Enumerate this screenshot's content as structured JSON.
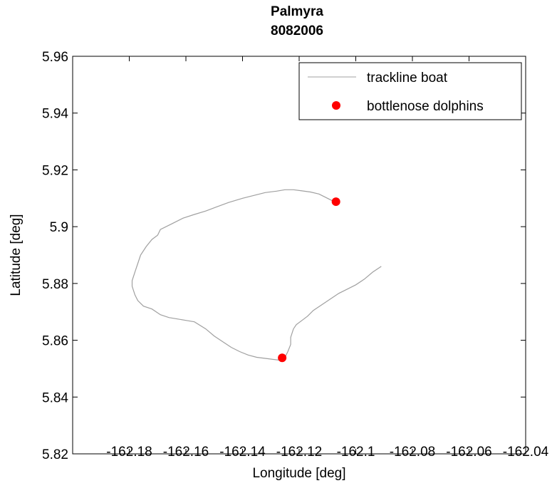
{
  "chart_data": {
    "type": "line",
    "title": "Palmyra",
    "subtitle": "8082006",
    "xlabel": "Longitude [deg]",
    "ylabel": "Latitude [deg]",
    "xlim": [
      -162.2,
      -162.04
    ],
    "ylim": [
      5.82,
      5.96
    ],
    "xticks": [
      -162.18,
      -162.16,
      -162.14,
      -162.12,
      -162.1,
      -162.08,
      -162.06,
      -162.04
    ],
    "xtick_labels": [
      "-162.18",
      "-162.16",
      "-162.14",
      "-162.12",
      "-162.1",
      "-162.08",
      "-162.06",
      "-162.04"
    ],
    "yticks": [
      5.82,
      5.84,
      5.86,
      5.88,
      5.9,
      5.92,
      5.94,
      5.96
    ],
    "ytick_labels": [
      "5.82",
      "5.84",
      "5.86",
      "5.88",
      "5.9",
      "5.92",
      "5.94",
      "5.96"
    ],
    "grid": false,
    "legend_position": "top-right",
    "series": [
      {
        "name": "trackline boat",
        "kind": "line",
        "color": "#a0a0a0",
        "x": [
          -162.108,
          -162.111,
          -162.113,
          -162.116,
          -162.119,
          -162.122,
          -162.125,
          -162.128,
          -162.132,
          -162.136,
          -162.14,
          -162.145,
          -162.149,
          -162.153,
          -162.157,
          -162.161,
          -162.165,
          -162.169,
          -162.17,
          -162.172,
          -162.174,
          -162.176,
          -162.177,
          -162.178,
          -162.179,
          -162.179,
          -162.178,
          -162.177,
          -162.175,
          -162.172,
          -162.169,
          -162.166,
          -162.163,
          -162.16,
          -162.157,
          -162.153,
          -162.15,
          -162.147,
          -162.144,
          -162.141,
          -162.138,
          -162.135,
          -162.131,
          -162.127,
          -162.125,
          -162.124,
          -162.123,
          -162.123,
          -162.122,
          -162.121,
          -162.119,
          -162.117,
          -162.115,
          -162.112,
          -162.109,
          -162.106,
          -162.103,
          -162.1,
          -162.097,
          -162.094,
          -162.091
        ],
        "y": [
          5.909,
          5.9105,
          5.9115,
          5.9122,
          5.9126,
          5.913,
          5.913,
          5.9125,
          5.912,
          5.911,
          5.91,
          5.9085,
          5.907,
          5.9055,
          5.9043,
          5.903,
          5.901,
          5.899,
          5.897,
          5.8955,
          5.893,
          5.89,
          5.887,
          5.884,
          5.881,
          5.879,
          5.876,
          5.874,
          5.872,
          5.871,
          5.869,
          5.868,
          5.8675,
          5.867,
          5.8665,
          5.864,
          5.8615,
          5.8595,
          5.8575,
          5.856,
          5.8548,
          5.854,
          5.8535,
          5.853,
          5.854,
          5.856,
          5.8585,
          5.861,
          5.864,
          5.8655,
          5.867,
          5.8685,
          5.8705,
          5.8725,
          5.8745,
          5.8765,
          5.878,
          5.8795,
          5.8815,
          5.884,
          5.886
        ]
      },
      {
        "name": "bottlenose dolphins",
        "kind": "scatter",
        "color": "#ff0000",
        "x": [
          -162.107,
          -162.126
        ],
        "y": [
          5.9088,
          5.8538
        ]
      }
    ]
  }
}
